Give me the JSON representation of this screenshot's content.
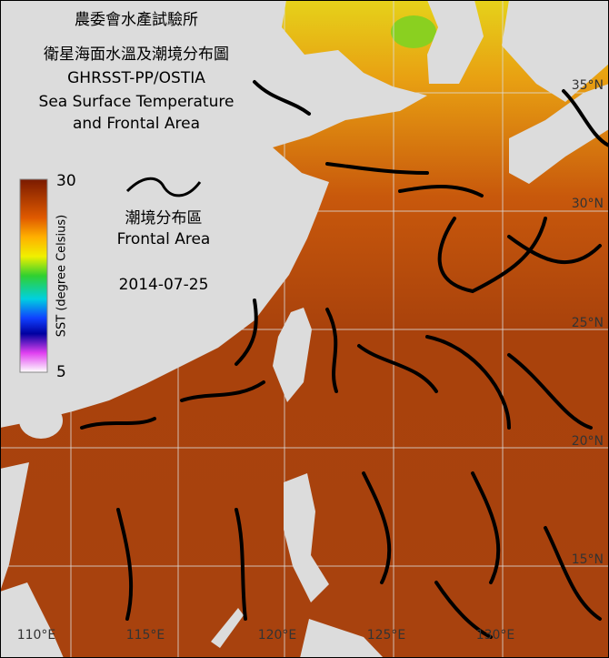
{
  "header": {
    "title_lines": [
      "農委會水產試驗所",
      "衛星海面水溫及潮境分布圖",
      "GHRSST-PP/OSTIA",
      "Sea Surface Temperature",
      "and Frontal Area"
    ]
  },
  "colorbar": {
    "max": "30",
    "min": "5",
    "label": "SST (degree Celsius)"
  },
  "legend": {
    "label_zh": "潮境分布區",
    "label_en": "Frontal Area"
  },
  "date": "2014-07-25",
  "map": {
    "lon_labels": [
      "110°E",
      "115°E",
      "120°E",
      "125°E",
      "130°E"
    ],
    "lat_labels": [
      "35°N",
      "30°N",
      "25°N",
      "20°N",
      "15°N"
    ]
  }
}
